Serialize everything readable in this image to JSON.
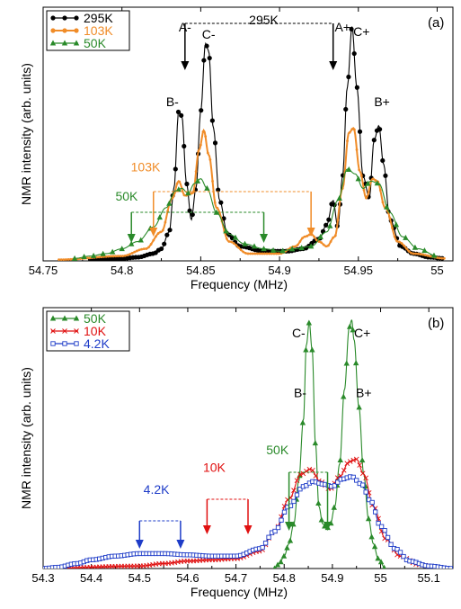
{
  "chart_data": [
    {
      "type": "line",
      "panel_label": "(a)",
      "xlabel": "Frequency (MHz)",
      "ylabel": "NMR intensity (arb. units)",
      "xlim": [
        54.75,
        55.01
      ],
      "ylim": [
        0,
        1.05
      ],
      "xticks": [
        54.75,
        54.8,
        54.85,
        54.9,
        54.95,
        55
      ],
      "xtick_labels": [
        "54.75",
        "54.8",
        "54.85",
        "54.9",
        "54.95",
        "55"
      ],
      "legend_position": "top-left",
      "series": [
        {
          "name": "295K",
          "color": "#000000",
          "marker": "circle",
          "points": [
            [
              54.78,
              0.005
            ],
            [
              54.8,
              0.01
            ],
            [
              54.81,
              0.015
            ],
            [
              54.82,
              0.03
            ],
            [
              54.825,
              0.05
            ],
            [
              54.83,
              0.12
            ],
            [
              54.833,
              0.3
            ],
            [
              54.836,
              0.62
            ],
            [
              54.838,
              0.6
            ],
            [
              54.841,
              0.32
            ],
            [
              54.844,
              0.17
            ],
            [
              54.847,
              0.3
            ],
            [
              54.85,
              0.62
            ],
            [
              54.853,
              0.9
            ],
            [
              54.855,
              0.87
            ],
            [
              54.858,
              0.55
            ],
            [
              54.862,
              0.25
            ],
            [
              54.867,
              0.11
            ],
            [
              54.875,
              0.06
            ],
            [
              54.89,
              0.04
            ],
            [
              54.905,
              0.04
            ],
            [
              54.915,
              0.05
            ],
            [
              54.925,
              0.09
            ],
            [
              54.93,
              0.15
            ],
            [
              54.934,
              0.25
            ],
            [
              54.937,
              0.14
            ],
            [
              54.94,
              0.35
            ],
            [
              54.943,
              0.72
            ],
            [
              54.946,
              0.97
            ],
            [
              54.949,
              0.72
            ],
            [
              54.953,
              0.35
            ],
            [
              54.957,
              0.26
            ],
            [
              54.96,
              0.5
            ],
            [
              54.963,
              0.56
            ],
            [
              54.966,
              0.4
            ],
            [
              54.97,
              0.17
            ],
            [
              54.977,
              0.06
            ],
            [
              54.985,
              0.03
            ],
            [
              54.995,
              0.015
            ],
            [
              55.005,
              0.01
            ]
          ]
        },
        {
          "name": "103K",
          "color": "#f08c28",
          "marker": "dot",
          "points": [
            [
              54.76,
              0.005
            ],
            [
              54.8,
              0.02
            ],
            [
              54.815,
              0.05
            ],
            [
              54.825,
              0.12
            ],
            [
              54.832,
              0.26
            ],
            [
              54.836,
              0.33
            ],
            [
              54.84,
              0.27
            ],
            [
              54.845,
              0.28
            ],
            [
              54.849,
              0.46
            ],
            [
              54.852,
              0.54
            ],
            [
              54.855,
              0.44
            ],
            [
              54.86,
              0.22
            ],
            [
              54.868,
              0.08
            ],
            [
              54.88,
              0.03
            ],
            [
              54.9,
              0.03
            ],
            [
              54.91,
              0.06
            ],
            [
              54.916,
              0.1
            ],
            [
              54.92,
              0.11
            ],
            [
              54.925,
              0.08
            ],
            [
              54.93,
              0.06
            ],
            [
              54.935,
              0.1
            ],
            [
              54.94,
              0.3
            ],
            [
              54.944,
              0.53
            ],
            [
              54.947,
              0.55
            ],
            [
              54.951,
              0.37
            ],
            [
              54.955,
              0.26
            ],
            [
              54.959,
              0.34
            ],
            [
              54.962,
              0.33
            ],
            [
              54.967,
              0.22
            ],
            [
              54.975,
              0.08
            ],
            [
              54.985,
              0.03
            ],
            [
              55.005,
              0.01
            ]
          ]
        },
        {
          "name": "50K",
          "color": "#2a8a2a",
          "marker": "triangle",
          "points": [
            [
              54.77,
              0.01
            ],
            [
              54.78,
              0.02
            ],
            [
              54.79,
              0.03
            ],
            [
              54.8,
              0.05
            ],
            [
              54.81,
              0.08
            ],
            [
              54.82,
              0.14
            ],
            [
              54.828,
              0.22
            ],
            [
              54.834,
              0.29
            ],
            [
              54.838,
              0.3
            ],
            [
              54.842,
              0.28
            ],
            [
              54.846,
              0.32
            ],
            [
              54.85,
              0.34
            ],
            [
              54.854,
              0.3
            ],
            [
              54.86,
              0.2
            ],
            [
              54.868,
              0.11
            ],
            [
              54.878,
              0.07
            ],
            [
              54.89,
              0.05
            ],
            [
              54.9,
              0.04
            ],
            [
              54.91,
              0.05
            ],
            [
              54.92,
              0.06
            ],
            [
              54.93,
              0.12
            ],
            [
              54.937,
              0.25
            ],
            [
              54.943,
              0.38
            ],
            [
              54.948,
              0.36
            ],
            [
              54.953,
              0.3
            ],
            [
              54.958,
              0.33
            ],
            [
              54.963,
              0.32
            ],
            [
              54.97,
              0.2
            ],
            [
              54.978,
              0.1
            ],
            [
              54.988,
              0.05
            ],
            [
              55.0,
              0.02
            ]
          ]
        }
      ],
      "annotations": [
        {
          "text": "A-",
          "x": 54.84,
          "y": 0.95
        },
        {
          "text": "295K",
          "x": 54.89,
          "y": 0.98
        },
        {
          "text": "A+",
          "x": 54.94,
          "y": 0.95
        },
        {
          "text": "C-",
          "x": 54.855,
          "y": 0.92
        },
        {
          "text": "C+",
          "x": 54.952,
          "y": 0.93
        },
        {
          "text": "B-",
          "x": 54.832,
          "y": 0.64
        },
        {
          "text": "B+",
          "x": 54.965,
          "y": 0.64
        },
        {
          "text": "103K",
          "x": 54.815,
          "y": 0.37
        },
        {
          "text": "50K",
          "x": 54.803,
          "y": 0.25
        }
      ],
      "arrow_pairs": [
        {
          "label": "295K",
          "x1": 54.84,
          "x2": 54.934,
          "color": "#000000"
        },
        {
          "label": "103K",
          "x1": 54.82,
          "x2": 54.92,
          "color": "#f08c28"
        },
        {
          "label": "50K",
          "x1": 54.806,
          "x2": 54.89,
          "color": "#2a8a2a"
        }
      ]
    },
    {
      "type": "line",
      "panel_label": "(b)",
      "xlabel": "Frequency (MHz)",
      "ylabel": "NMR intensity (arb. units)",
      "xlim": [
        54.3,
        55.15
      ],
      "ylim": [
        0,
        1.05
      ],
      "xticks": [
        54.3,
        54.4,
        54.5,
        54.6,
        54.7,
        54.8,
        54.9,
        55,
        55.1
      ],
      "xtick_labels": [
        "54.3",
        "54.4",
        "54.5",
        "54.6",
        "54.7",
        "54.8",
        "54.9",
        "55",
        "55.1"
      ],
      "legend_position": "top-left",
      "series": [
        {
          "name": "50K",
          "color": "#2a8a2a",
          "marker": "triangle",
          "points": [
            [
              54.78,
              0.0
            ],
            [
              54.79,
              0.02
            ],
            [
              54.8,
              0.05
            ],
            [
              54.81,
              0.1
            ],
            [
              54.82,
              0.18
            ],
            [
              54.83,
              0.35
            ],
            [
              54.84,
              0.6
            ],
            [
              54.846,
              0.9
            ],
            [
              54.852,
              0.99
            ],
            [
              54.858,
              0.88
            ],
            [
              54.865,
              0.5
            ],
            [
              54.872,
              0.25
            ],
            [
              54.88,
              0.18
            ],
            [
              54.888,
              0.16
            ],
            [
              54.896,
              0.18
            ],
            [
              54.905,
              0.25
            ],
            [
              54.915,
              0.42
            ],
            [
              54.925,
              0.72
            ],
            [
              54.935,
              0.97
            ],
            [
              54.94,
              1.0
            ],
            [
              54.945,
              0.92
            ],
            [
              54.955,
              0.65
            ],
            [
              54.965,
              0.38
            ],
            [
              54.975,
              0.2
            ],
            [
              54.985,
              0.1
            ],
            [
              54.995,
              0.04
            ],
            [
              55.01,
              0.0
            ]
          ]
        },
        {
          "name": "10K",
          "color": "#e01010",
          "marker": "cross",
          "points": [
            [
              54.3,
              0.0
            ],
            [
              54.5,
              0.01
            ],
            [
              54.55,
              0.02
            ],
            [
              54.6,
              0.03
            ],
            [
              54.65,
              0.035
            ],
            [
              54.7,
              0.04
            ],
            [
              54.75,
              0.07
            ],
            [
              54.78,
              0.15
            ],
            [
              54.81,
              0.28
            ],
            [
              54.835,
              0.38
            ],
            [
              54.855,
              0.4
            ],
            [
              54.875,
              0.35
            ],
            [
              54.895,
              0.32
            ],
            [
              54.915,
              0.37
            ],
            [
              54.935,
              0.43
            ],
            [
              54.95,
              0.44
            ],
            [
              54.965,
              0.38
            ],
            [
              54.985,
              0.25
            ],
            [
              55.01,
              0.12
            ],
            [
              55.04,
              0.05
            ],
            [
              55.08,
              0.015
            ],
            [
              55.13,
              0.0
            ]
          ]
        },
        {
          "name": "4.2K",
          "color": "#1e3cc8",
          "marker": "square-open",
          "points": [
            [
              54.3,
              0.0
            ],
            [
              54.33,
              0.005
            ],
            [
              54.37,
              0.02
            ],
            [
              54.4,
              0.035
            ],
            [
              54.45,
              0.05
            ],
            [
              54.5,
              0.06
            ],
            [
              54.55,
              0.06
            ],
            [
              54.6,
              0.055
            ],
            [
              54.65,
              0.05
            ],
            [
              54.7,
              0.05
            ],
            [
              54.75,
              0.08
            ],
            [
              54.78,
              0.15
            ],
            [
              54.81,
              0.25
            ],
            [
              54.84,
              0.33
            ],
            [
              54.86,
              0.35
            ],
            [
              54.88,
              0.34
            ],
            [
              54.9,
              0.33
            ],
            [
              54.92,
              0.36
            ],
            [
              54.94,
              0.37
            ],
            [
              54.96,
              0.34
            ],
            [
              54.98,
              0.27
            ],
            [
              55.0,
              0.17
            ],
            [
              55.03,
              0.08
            ],
            [
              55.06,
              0.03
            ],
            [
              55.1,
              0.01
            ],
            [
              55.15,
              0.0
            ]
          ]
        }
      ],
      "annotations": [
        {
          "text": "C-",
          "x": 54.83,
          "y": 0.93
        },
        {
          "text": "C+",
          "x": 54.962,
          "y": 0.93
        },
        {
          "text": "B-",
          "x": 54.833,
          "y": 0.69
        },
        {
          "text": "B+",
          "x": 54.965,
          "y": 0.69
        },
        {
          "text": "50K",
          "x": 54.786,
          "y": 0.46
        },
        {
          "text": "10K",
          "x": 54.655,
          "y": 0.39
        },
        {
          "text": "4.2K",
          "x": 54.535,
          "y": 0.3
        }
      ],
      "arrow_pairs": [
        {
          "label": "50K",
          "x1": 54.81,
          "x2": 54.89,
          "color": "#2a8a2a"
        },
        {
          "label": "10K",
          "x1": 54.64,
          "x2": 54.725,
          "color": "#e01010"
        },
        {
          "label": "4.2K",
          "x1": 54.5,
          "x2": 54.585,
          "color": "#1e3cc8"
        }
      ]
    }
  ]
}
